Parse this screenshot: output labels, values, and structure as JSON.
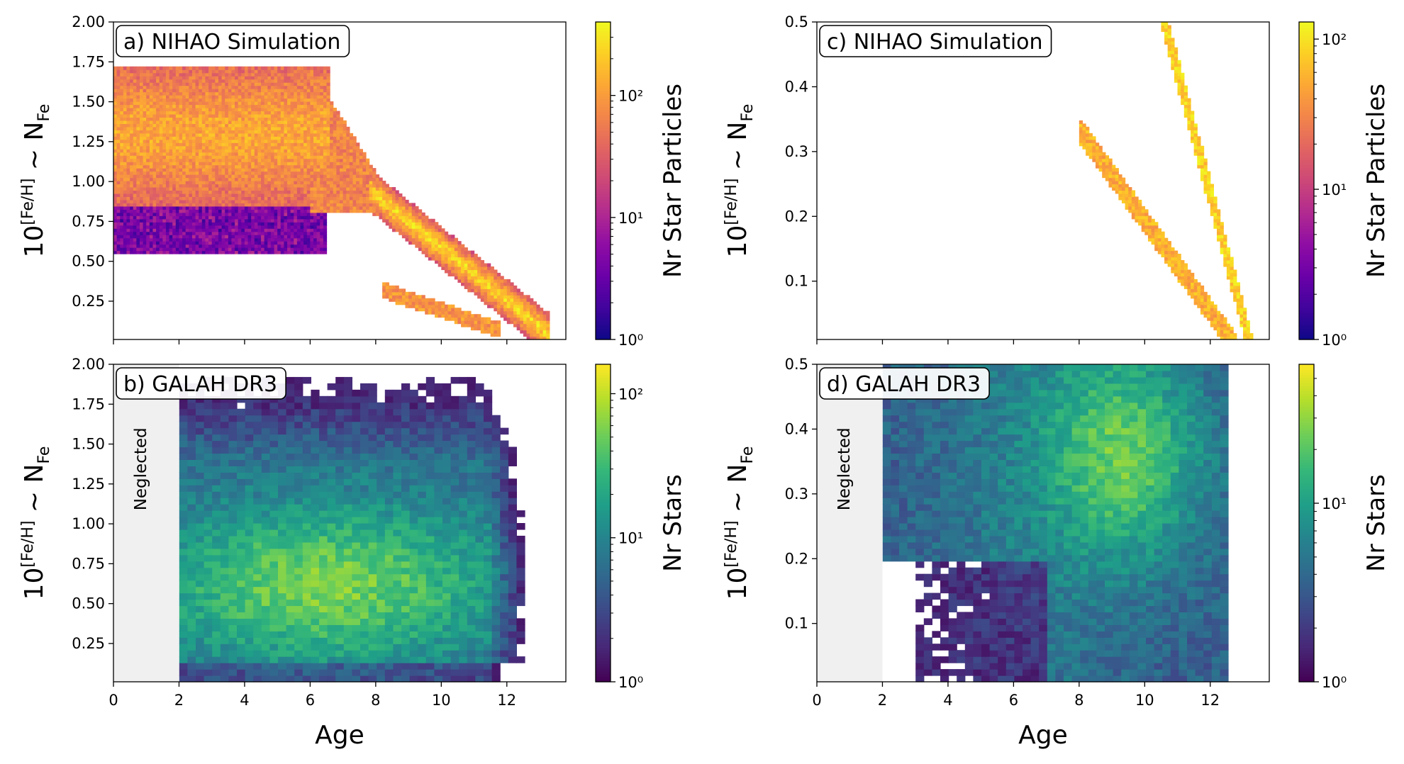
{
  "figure": {
    "shared_xlabel": "Age",
    "ylabel_main": "10",
    "ylabel_exp": "[Fe/H]",
    "ylabel_tail": " ~ N",
    "ylabel_sub": "Fe",
    "neglected_label": "Neglected"
  },
  "colors": {
    "plasma": [
      "#0d0887",
      "#41049d",
      "#6a00a8",
      "#8f0da4",
      "#b12a90",
      "#cc4778",
      "#e16462",
      "#f2844b",
      "#fca636",
      "#fcce25",
      "#f0f921"
    ],
    "viridis": [
      "#440154",
      "#482878",
      "#3e4989",
      "#31688e",
      "#26828e",
      "#1f9e89",
      "#35b779",
      "#6ece58",
      "#b5de2b",
      "#fde725"
    ],
    "neglected_shade": "#f0f0f0"
  },
  "chart_data": [
    {
      "panel": "a",
      "type": "heatmap",
      "title": "a) NIHAO Simulation",
      "colormap": "plasma",
      "xlabel": "",
      "xlim": [
        0,
        13.8
      ],
      "ylim": [
        0.01,
        2.0
      ],
      "xticks": [
        0,
        2,
        4,
        6,
        8,
        10,
        12
      ],
      "yticks": [
        0.25,
        0.5,
        0.75,
        1.0,
        1.25,
        1.5,
        1.75,
        2.0
      ],
      "ytick_labels": [
        "0.25",
        "0.50",
        "0.75",
        "1.00",
        "1.25",
        "1.50",
        "1.75",
        "2.00"
      ],
      "show_xtick_labels": false,
      "colorbar": {
        "label": "Nr Star Particles",
        "scale": "log",
        "range": [
          1,
          400
        ],
        "ticks": [
          1,
          10,
          100
        ],
        "tick_labels": [
          "10⁰",
          "10¹",
          "10²"
        ]
      },
      "neglected_region": null
    },
    {
      "panel": "c",
      "type": "heatmap",
      "title": "c) NIHAO Simulation",
      "colormap": "plasma",
      "xlabel": "",
      "xlim": [
        0,
        13.8
      ],
      "ylim": [
        0.01,
        0.5
      ],
      "xticks": [
        0,
        2,
        4,
        6,
        8,
        10,
        12
      ],
      "yticks": [
        0.1,
        0.2,
        0.3,
        0.4,
        0.5
      ],
      "ytick_labels": [
        "0.1",
        "0.2",
        "0.3",
        "0.4",
        "0.5"
      ],
      "show_xtick_labels": false,
      "colorbar": {
        "label": "Nr Star Particles",
        "scale": "log",
        "range": [
          1,
          130
        ],
        "ticks": [
          1,
          10,
          100
        ],
        "tick_labels": [
          "10⁰",
          "10¹",
          "10²"
        ]
      },
      "neglected_region": null
    },
    {
      "panel": "b",
      "type": "heatmap",
      "title": "b) GALAH DR3",
      "colormap": "viridis",
      "xlabel": "Age",
      "xlim": [
        0,
        13.8
      ],
      "ylim": [
        0.01,
        2.0
      ],
      "xticks": [
        0,
        2,
        4,
        6,
        8,
        10,
        12
      ],
      "xtick_labels": [
        "0",
        "2",
        "4",
        "6",
        "8",
        "10",
        "12"
      ],
      "yticks": [
        0.25,
        0.5,
        0.75,
        1.0,
        1.25,
        1.5,
        1.75,
        2.0
      ],
      "ytick_labels": [
        "0.25",
        "0.50",
        "0.75",
        "1.00",
        "1.25",
        "1.50",
        "1.75",
        "2.00"
      ],
      "show_xtick_labels": true,
      "colorbar": {
        "label": "Nr Stars",
        "scale": "log",
        "range": [
          1,
          160
        ],
        "ticks": [
          1,
          10,
          100
        ],
        "tick_labels": [
          "10⁰",
          "10¹",
          "10²"
        ]
      },
      "neglected_region": [
        0,
        2
      ]
    },
    {
      "panel": "d",
      "type": "heatmap",
      "title": "d) GALAH DR3",
      "colormap": "viridis",
      "xlabel": "Age",
      "xlim": [
        0,
        13.8
      ],
      "ylim": [
        0.01,
        0.5
      ],
      "xticks": [
        0,
        2,
        4,
        6,
        8,
        10,
        12
      ],
      "xtick_labels": [
        "0",
        "2",
        "4",
        "6",
        "8",
        "10",
        "12"
      ],
      "yticks": [
        0.1,
        0.2,
        0.3,
        0.4,
        0.5
      ],
      "ytick_labels": [
        "0.1",
        "0.2",
        "0.3",
        "0.4",
        "0.5"
      ],
      "show_xtick_labels": true,
      "colorbar": {
        "label": "Nr Stars",
        "scale": "log",
        "range": [
          1,
          60
        ],
        "ticks": [
          1,
          10
        ],
        "tick_labels": [
          "10⁰",
          "10¹"
        ]
      },
      "neglected_region": [
        0,
        2
      ]
    }
  ]
}
